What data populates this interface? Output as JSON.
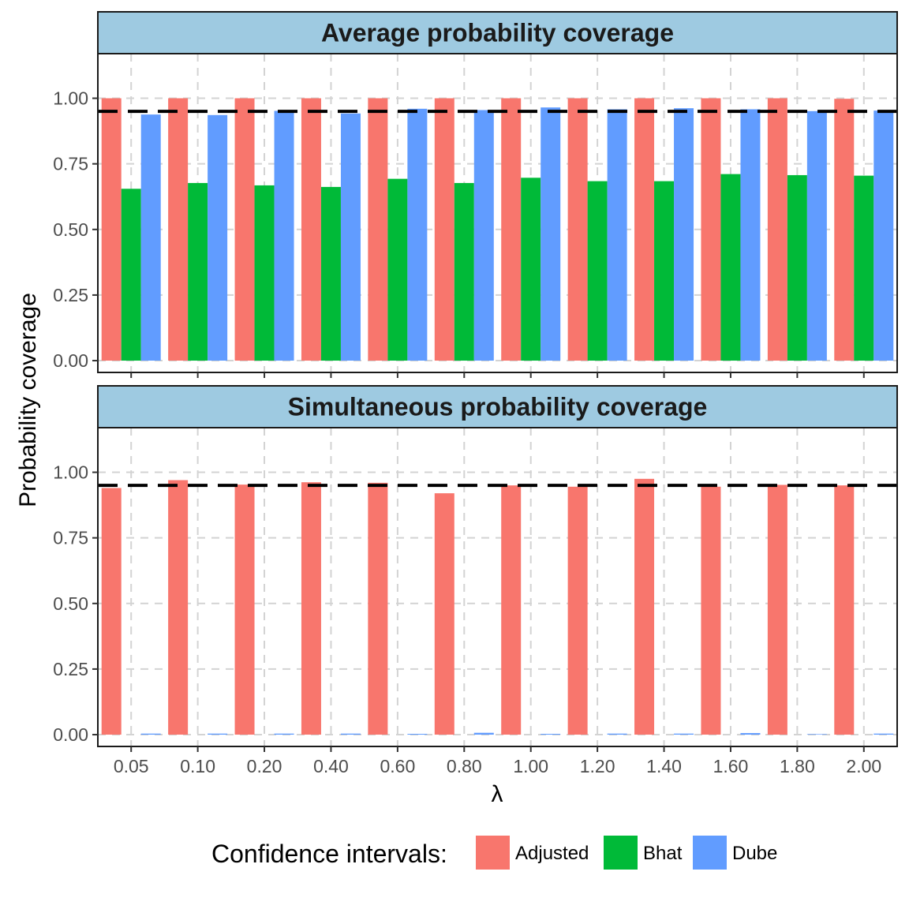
{
  "chart_data": {
    "type": "bar",
    "categories": [
      "0.05",
      "0.10",
      "0.20",
      "0.40",
      "0.60",
      "0.80",
      "1.00",
      "1.20",
      "1.40",
      "1.60",
      "1.80",
      "2.00"
    ],
    "xlabel": "λ",
    "ylabel": "Probability coverage",
    "ylim": [
      -0.045,
      1.17
    ],
    "yticks": [
      "0.00",
      "0.25",
      "0.50",
      "0.75",
      "1.00"
    ],
    "reference_line": 0.95,
    "grid": true,
    "legend": {
      "title": "Confidence intervals:",
      "placement": "bottom",
      "entries": [
        {
          "name": "Adjusted",
          "color": "#F8766D"
        },
        {
          "name": "Bhat",
          "color": "#00BA38"
        },
        {
          "name": "Dube",
          "color": "#619CFF"
        }
      ]
    },
    "panels": [
      {
        "title": "Average probability coverage",
        "series": [
          {
            "name": "Adjusted",
            "values": [
              1.0,
              1.0,
              1.0,
              1.0,
              1.0,
              1.0,
              1.0,
              1.0,
              1.0,
              1.0,
              1.0,
              0.998
            ]
          },
          {
            "name": "Bhat",
            "values": [
              0.655,
              0.677,
              0.668,
              0.662,
              0.693,
              0.677,
              0.697,
              0.684,
              0.684,
              0.711,
              0.707,
              0.705
            ]
          },
          {
            "name": "Dube",
            "values": [
              0.938,
              0.936,
              0.952,
              0.942,
              0.96,
              0.955,
              0.965,
              0.958,
              0.962,
              0.958,
              0.951,
              0.953
            ]
          }
        ]
      },
      {
        "title": "Simultaneous probability coverage",
        "series": [
          {
            "name": "Adjusted",
            "values": [
              0.94,
              0.97,
              0.953,
              0.962,
              0.96,
              0.92,
              0.95,
              0.945,
              0.975,
              0.945,
              0.952,
              0.95
            ]
          },
          {
            "name": "Bhat",
            "values": [
              0,
              0,
              0,
              0,
              0,
              0,
              0,
              0,
              0,
              0,
              0,
              0
            ]
          },
          {
            "name": "Dube",
            "values": [
              0.004,
              0.004,
              0.004,
              0.004,
              0.003,
              0.007,
              0.003,
              0.004,
              0.004,
              0.006,
              0.002,
              0.004
            ]
          }
        ]
      }
    ]
  }
}
